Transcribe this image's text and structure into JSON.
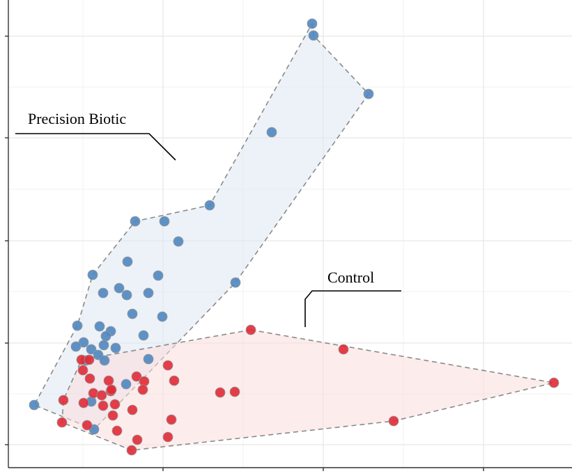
{
  "chart_data": {
    "type": "scatter",
    "title": "",
    "xlabel": "",
    "ylabel": "",
    "grid": true,
    "colors": {
      "precision": "#4f86bf",
      "precision_fill": "#dce8f3",
      "control": "#e02a36",
      "control_fill": "#fbdcdc",
      "hull_stroke": "#8a8a8a",
      "grid": "#e8e8e8"
    },
    "series": [
      {
        "name": "Precision Biotic",
        "points": [
          [
            448,
            34
          ],
          [
            450,
            51
          ],
          [
            529,
            135
          ],
          [
            390,
            190
          ],
          [
            301,
            295
          ],
          [
            338,
            406
          ],
          [
            256,
            347
          ],
          [
            236,
            318
          ],
          [
            194,
            318
          ],
          [
            183,
            376
          ],
          [
            227,
            396
          ],
          [
            213,
            421
          ],
          [
            182,
            424
          ],
          [
            171,
            414
          ],
          [
            148,
            421
          ],
          [
            133,
            395
          ],
          [
            111,
            468
          ],
          [
            143,
            469
          ],
          [
            159,
            476
          ],
          [
            190,
            451
          ],
          [
            206,
            482
          ],
          [
            233,
            455
          ],
          [
            120,
            492
          ],
          [
            109,
            498
          ],
          [
            131,
            502
          ],
          [
            152,
            483
          ],
          [
            149,
            496
          ],
          [
            166,
            500
          ],
          [
            141,
            510
          ],
          [
            150,
            518
          ],
          [
            213,
            516
          ],
          [
            181,
            552
          ],
          [
            49,
            582
          ],
          [
            135,
            617
          ],
          [
            123,
            518
          ],
          [
            131,
            577
          ]
        ],
        "hull": [
          [
            448,
            34
          ],
          [
            450,
            51
          ],
          [
            529,
            135
          ],
          [
            338,
            406
          ],
          [
            135,
            617
          ],
          [
            49,
            582
          ],
          [
            111,
            468
          ],
          [
            133,
            395
          ],
          [
            194,
            318
          ],
          [
            301,
            295
          ]
        ]
      },
      {
        "name": "Control",
        "points": [
          [
            360,
            474
          ],
          [
            493,
            502
          ],
          [
            795,
            550
          ],
          [
            565,
            605
          ],
          [
            241,
            525
          ],
          [
            250,
            547
          ],
          [
            316,
            564
          ],
          [
            337,
            563
          ],
          [
            196,
            541
          ],
          [
            207,
            548
          ],
          [
            205,
            560
          ],
          [
            117,
            517
          ],
          [
            128,
            517
          ],
          [
            119,
            532
          ],
          [
            129,
            544
          ],
          [
            156,
            547
          ],
          [
            134,
            565
          ],
          [
            146,
            568
          ],
          [
            159,
            562
          ],
          [
            160,
            560
          ],
          [
            91,
            575
          ],
          [
            120,
            579
          ],
          [
            148,
            583
          ],
          [
            165,
            581
          ],
          [
            190,
            589
          ],
          [
            162,
            597
          ],
          [
            246,
            603
          ],
          [
            125,
            611
          ],
          [
            89,
            607
          ],
          [
            168,
            619
          ],
          [
            241,
            628
          ],
          [
            197,
            632
          ],
          [
            189,
            647
          ]
        ],
        "hull": [
          [
            360,
            474
          ],
          [
            795,
            550
          ],
          [
            565,
            605
          ],
          [
            189,
            647
          ],
          [
            89,
            607
          ],
          [
            91,
            575
          ],
          [
            117,
            517
          ]
        ]
      }
    ],
    "annotations": [
      {
        "text": "Precision Biotic",
        "target": "Precision Biotic"
      },
      {
        "text": "Control",
        "target": "Control"
      }
    ]
  }
}
